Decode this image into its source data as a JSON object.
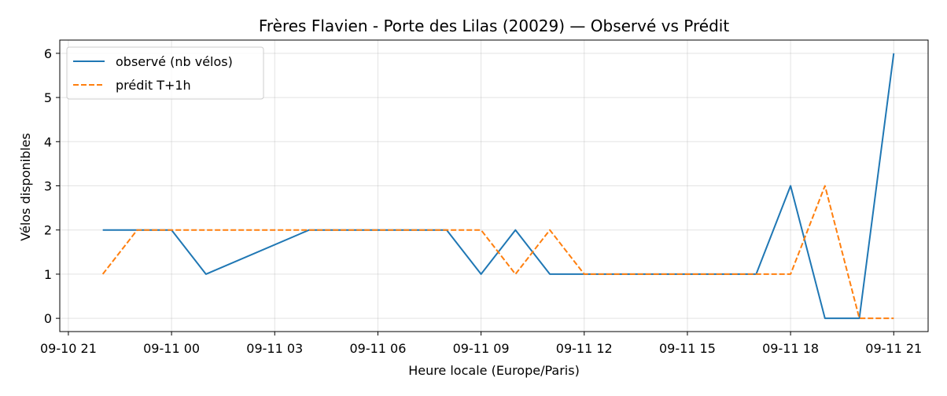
{
  "chart_data": {
    "type": "line",
    "title": "Frères Flavien - Porte des Lilas (20029) — Observé vs Prédit",
    "xlabel": "Heure locale (Europe/Paris)",
    "ylabel": "Vélos disponibles",
    "x_ticks": [
      "09-10 21",
      "09-11 00",
      "09-11 03",
      "09-11 06",
      "09-11 09",
      "09-11 12",
      "09-11 15",
      "09-11 18",
      "09-11 21"
    ],
    "y_ticks": [
      "0",
      "1",
      "2",
      "3",
      "4",
      "5",
      "6"
    ],
    "xlim": [
      "2025-09-10 20:45",
      "2025-09-11 22:00"
    ],
    "ylim": [
      -0.3,
      6.3
    ],
    "grid": true,
    "legend_position": "upper-left",
    "series": [
      {
        "name": "observé (nb vélos)",
        "color": "#1f77b4",
        "style": "solid",
        "x": [
          "2025-09-10 22:00",
          "2025-09-10 23:00",
          "2025-09-11 00:00",
          "2025-09-11 01:00",
          "2025-09-11 04:00",
          "2025-09-11 05:00",
          "2025-09-11 06:00",
          "2025-09-11 07:00",
          "2025-09-11 08:00",
          "2025-09-11 09:00",
          "2025-09-11 10:00",
          "2025-09-11 11:00",
          "2025-09-11 12:00",
          "2025-09-11 13:00",
          "2025-09-11 14:00",
          "2025-09-11 15:00",
          "2025-09-11 16:00",
          "2025-09-11 17:00",
          "2025-09-11 18:00",
          "2025-09-11 19:00",
          "2025-09-11 20:00",
          "2025-09-11 21:00"
        ],
        "values": [
          2,
          2,
          2,
          1,
          2,
          2,
          2,
          2,
          2,
          1,
          2,
          1,
          1,
          1,
          1,
          1,
          1,
          1,
          3,
          0,
          0,
          6
        ]
      },
      {
        "name": "prédit T+1h",
        "color": "#ff7f0e",
        "style": "dashed",
        "x": [
          "2025-09-10 22:00",
          "2025-09-10 23:00",
          "2025-09-11 00:00",
          "2025-09-11 01:00",
          "2025-09-11 05:00",
          "2025-09-11 06:00",
          "2025-09-11 07:00",
          "2025-09-11 08:00",
          "2025-09-11 09:00",
          "2025-09-11 10:00",
          "2025-09-11 11:00",
          "2025-09-11 12:00",
          "2025-09-11 13:00",
          "2025-09-11 14:00",
          "2025-09-11 15:00",
          "2025-09-11 16:00",
          "2025-09-11 17:00",
          "2025-09-11 18:00",
          "2025-09-11 19:00",
          "2025-09-11 20:00",
          "2025-09-11 21:00"
        ],
        "values": [
          1,
          2,
          2,
          2,
          2,
          2,
          2,
          2,
          2,
          1,
          2,
          1,
          1,
          1,
          1,
          1,
          1,
          1,
          3,
          0,
          0
        ]
      }
    ]
  }
}
